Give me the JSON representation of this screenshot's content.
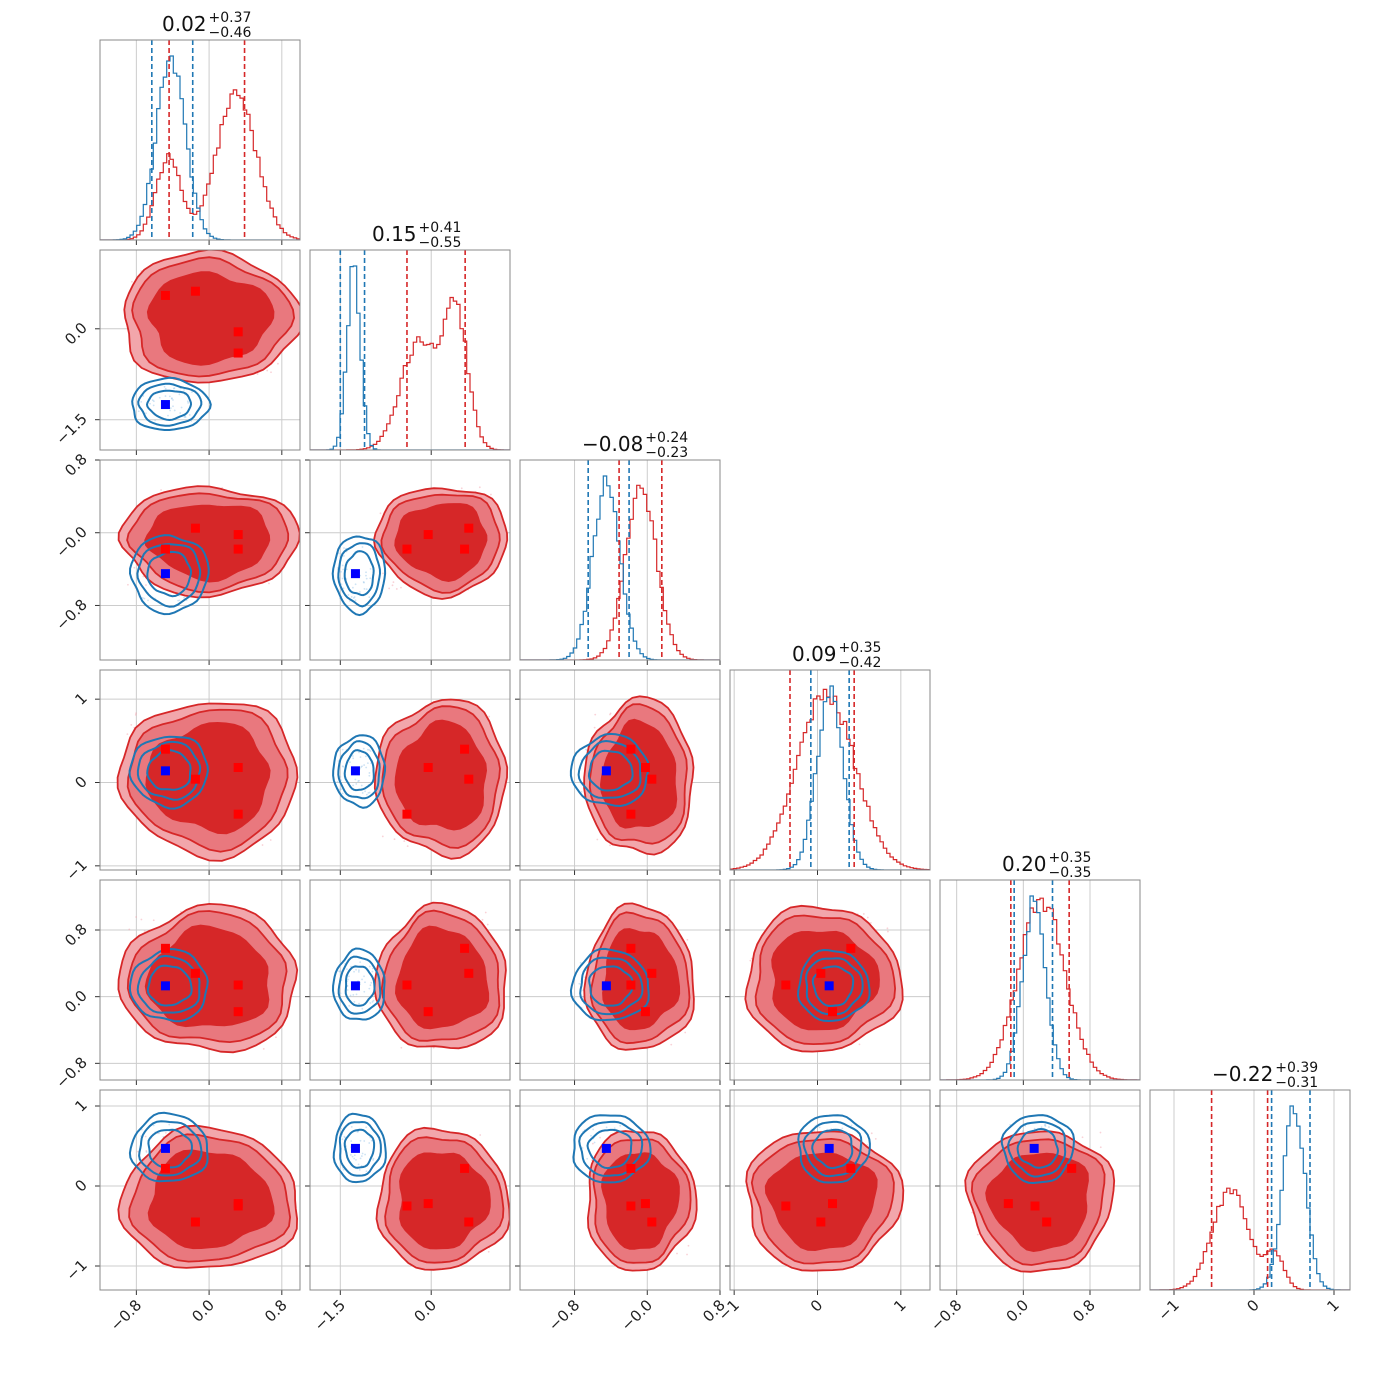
{
  "chart_data": {
    "type": "corner",
    "colors": {
      "red": "#d62728",
      "blue": "#1f77b4",
      "marker_red": "#ff0000",
      "marker_blue": "#0000ff",
      "grid": "#cccccc",
      "frame": "#888888"
    },
    "grid": true,
    "parameters": [
      {
        "range": [
          -1.2,
          1.0
        ],
        "ticks": [
          -0.8,
          0.0,
          0.8
        ],
        "tick_labels": [
          "−0.8",
          "0.0",
          "0.8"
        ],
        "title": {
          "value": "0.02",
          "plus": "+0.37",
          "minus": "−0.46"
        },
        "lines_red": [
          -0.44,
          0.39
        ],
        "lines_blue": [
          -0.63,
          -0.18
        ]
      },
      {
        "range": [
          -2.0,
          1.3
        ],
        "ticks": [
          -1.5,
          0.0
        ],
        "tick_labels": [
          "−1.5",
          "0.0"
        ],
        "title": {
          "value": "0.15",
          "plus": "+0.41",
          "minus": "−0.55"
        },
        "lines_red": [
          -0.4,
          0.56
        ],
        "lines_blue": [
          -1.5,
          -1.1
        ]
      },
      {
        "range": [
          -1.4,
          0.8
        ],
        "ticks": [
          -0.8,
          0.0,
          0.8
        ],
        "tick_labels": [
          "−0.8",
          "−0.0",
          "0.8"
        ],
        "title": {
          "value": "−0.08",
          "plus": "+0.24",
          "minus": "−0.23"
        },
        "lines_red": [
          -0.31,
          0.16
        ],
        "lines_blue": [
          -0.65,
          -0.2
        ]
      },
      {
        "range": [
          -1.05,
          1.35
        ],
        "ticks": [
          -1,
          0,
          1
        ],
        "tick_labels": [
          "−1",
          "0",
          "1"
        ],
        "title": {
          "value": "0.09",
          "plus": "+0.35",
          "minus": "−0.42"
        },
        "lines_red": [
          -0.33,
          0.44
        ],
        "lines_blue": [
          -0.08,
          0.38
        ]
      },
      {
        "range": [
          -1.0,
          1.4
        ],
        "ticks": [
          -0.8,
          0.0,
          0.8
        ],
        "tick_labels": [
          "−0.8",
          "0.0",
          "0.8"
        ],
        "title": {
          "value": "0.20",
          "plus": "+0.35",
          "minus": "−0.35"
        },
        "lines_red": [
          -0.15,
          0.55
        ],
        "lines_blue": [
          -0.11,
          0.35
        ]
      },
      {
        "range": [
          -1.3,
          1.2
        ],
        "ticks": [
          -1,
          0,
          1
        ],
        "tick_labels": [
          "−1",
          "0",
          "1"
        ],
        "title": {
          "value": "−0.22",
          "plus": "+0.39",
          "minus": "−0.31"
        },
        "lines_red": [
          -0.53,
          0.17
        ],
        "lines_blue": [
          0.22,
          0.7
        ]
      }
    ],
    "marginal_shapes": [
      {
        "red": [
          {
            "mu": -0.45,
            "sd": 0.14,
            "w": 0.45
          },
          {
            "mu": 0.3,
            "sd": 0.22,
            "w": 0.8
          }
        ],
        "blue": [
          {
            "mu": -0.42,
            "sd": 0.16,
            "w": 1.0
          }
        ]
      },
      {
        "red": [
          {
            "mu": -0.2,
            "sd": 0.3,
            "w": 0.6
          },
          {
            "mu": 0.4,
            "sd": 0.2,
            "w": 0.75
          }
        ],
        "blue": [
          {
            "mu": -1.28,
            "sd": 0.11,
            "w": 1.0
          }
        ]
      },
      {
        "red": [
          {
            "mu": -0.07,
            "sd": 0.17,
            "w": 1.0
          }
        ],
        "blue": [
          {
            "mu": -0.45,
            "sd": 0.15,
            "w": 1.0
          }
        ]
      },
      {
        "red": [
          {
            "mu": 0.1,
            "sd": 0.35,
            "w": 1.0
          }
        ],
        "blue": [
          {
            "mu": 0.15,
            "sd": 0.16,
            "w": 1.0
          }
        ]
      },
      {
        "red": [
          {
            "mu": 0.22,
            "sd": 0.28,
            "w": 1.0
          }
        ],
        "blue": [
          {
            "mu": 0.13,
            "sd": 0.14,
            "w": 1.0
          }
        ]
      },
      {
        "red": [
          {
            "mu": -0.3,
            "sd": 0.22,
            "w": 0.55
          },
          {
            "mu": 0.25,
            "sd": 0.12,
            "w": 0.2
          }
        ],
        "blue": [
          {
            "mu": 0.5,
            "sd": 0.14,
            "w": 1.0
          }
        ]
      }
    ],
    "true_blue": [
      -0.48,
      -1.25,
      -0.45,
      0.14,
      0.13,
      0.47
    ],
    "modes_red": [
      [
        -0.48,
        0.55,
        -0.18,
        0.4,
        0.58,
        0.22
      ],
      [
        -0.15,
        0.62,
        0.05,
        0.04,
        0.28,
        -0.45
      ],
      [
        0.32,
        -0.05,
        -0.02,
        0.18,
        -0.18,
        -0.22
      ],
      [
        0.32,
        -0.4,
        -0.18,
        -0.38,
        0.14,
        -0.25
      ]
    ]
  }
}
